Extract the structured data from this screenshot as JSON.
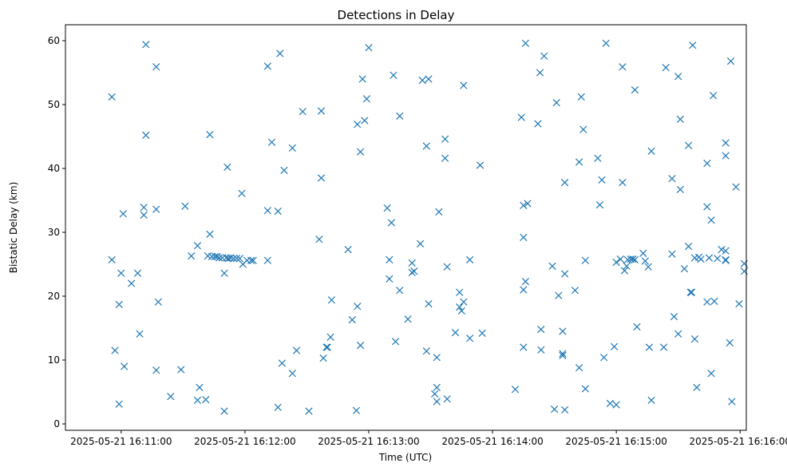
{
  "chart_data": {
    "type": "scatter",
    "title": "Detections in Delay",
    "xlabel": "Time (UTC)",
    "ylabel": "Bistatic Delay (km)",
    "x_unit": "seconds after 2025-05-21 16:11:00",
    "xlim": [
      -27,
      303
    ],
    "ylim": [
      -1,
      62.5
    ],
    "x_ticks": [
      {
        "value": 0,
        "label": "2025-05-21 16:11:00"
      },
      {
        "value": 60,
        "label": "2025-05-21 16:12:00"
      },
      {
        "value": 120,
        "label": "2025-05-21 16:13:00"
      },
      {
        "value": 180,
        "label": "2025-05-21 16:14:00"
      },
      {
        "value": 240,
        "label": "2025-05-21 16:15:00"
      },
      {
        "value": 300,
        "label": "2025-05-21 16:16:00"
      }
    ],
    "y_ticks": [
      0,
      10,
      20,
      30,
      40,
      50,
      60
    ],
    "marker": "x",
    "color": "#1f77b4",
    "series": [
      {
        "name": "detections",
        "points": [
          [
            -4.5,
            51.2
          ],
          [
            -4.5,
            25.7
          ],
          [
            -3,
            11.5
          ],
          [
            -1,
            3.1
          ],
          [
            -1,
            18.7
          ],
          [
            0,
            23.6
          ],
          [
            1,
            32.9
          ],
          [
            1.5,
            9.0
          ],
          [
            5,
            22.0
          ],
          [
            8,
            23.6
          ],
          [
            9,
            14.1
          ],
          [
            11,
            32.7
          ],
          [
            11,
            33.9
          ],
          [
            12,
            59.4
          ],
          [
            12,
            45.2
          ],
          [
            17,
            55.9
          ],
          [
            17,
            33.6
          ],
          [
            17,
            8.4
          ],
          [
            18,
            19.1
          ],
          [
            24,
            4.3
          ],
          [
            29,
            8.5
          ],
          [
            31,
            34.1
          ],
          [
            34,
            26.3
          ],
          [
            37,
            27.9
          ],
          [
            37,
            3.7
          ],
          [
            38,
            5.7
          ],
          [
            41,
            3.8
          ],
          [
            42,
            26.3
          ],
          [
            43,
            45.3
          ],
          [
            43,
            29.7
          ],
          [
            44,
            26.2
          ],
          [
            45.5,
            26.2
          ],
          [
            46.5,
            26.2
          ],
          [
            47.5,
            26.0
          ],
          [
            49,
            26.0
          ],
          [
            50,
            23.6
          ],
          [
            50,
            2.0
          ],
          [
            51,
            26.0
          ],
          [
            51.5,
            40.2
          ],
          [
            52,
            25.9
          ],
          [
            53,
            26.0
          ],
          [
            54.5,
            25.9
          ],
          [
            56,
            25.9
          ],
          [
            57.5,
            25.9
          ],
          [
            58.5,
            36.1
          ],
          [
            59,
            25.0
          ],
          [
            61,
            25.6
          ],
          [
            63,
            25.6
          ],
          [
            64,
            25.6
          ],
          [
            71,
            25.6
          ],
          [
            71,
            33.4
          ],
          [
            71,
            56.0
          ],
          [
            73,
            44.1
          ],
          [
            76,
            33.3
          ],
          [
            76,
            2.6
          ],
          [
            77,
            58.0
          ],
          [
            78,
            9.5
          ],
          [
            79,
            39.7
          ],
          [
            83,
            43.2
          ],
          [
            83,
            7.9
          ],
          [
            85,
            11.5
          ],
          [
            88,
            48.9
          ],
          [
            91,
            2.0
          ],
          [
            96,
            28.9
          ],
          [
            97,
            49.0
          ],
          [
            97,
            38.5
          ],
          [
            98,
            10.3
          ],
          [
            99.5,
            12.0
          ],
          [
            100,
            12.0
          ],
          [
            101.5,
            13.6
          ],
          [
            102,
            19.4
          ],
          [
            110,
            27.3
          ],
          [
            112,
            16.3
          ],
          [
            114,
            2.1
          ],
          [
            114.5,
            18.4
          ],
          [
            114.5,
            46.9
          ],
          [
            116,
            12.3
          ],
          [
            116,
            42.6
          ],
          [
            117,
            54.0
          ],
          [
            118,
            47.5
          ],
          [
            119,
            50.9
          ],
          [
            120,
            58.9
          ],
          [
            129,
            33.8
          ],
          [
            130,
            25.7
          ],
          [
            130,
            22.7
          ],
          [
            131,
            31.5
          ],
          [
            132,
            54.6
          ],
          [
            133,
            12.9
          ],
          [
            135,
            48.2
          ],
          [
            135,
            20.9
          ],
          [
            139,
            16.4
          ],
          [
            141,
            25.2
          ],
          [
            141,
            23.7
          ],
          [
            142,
            23.9
          ],
          [
            145,
            28.2
          ],
          [
            146,
            53.8
          ],
          [
            148,
            43.5
          ],
          [
            148,
            11.4
          ],
          [
            149,
            54.0
          ],
          [
            149,
            18.8
          ],
          [
            152,
            4.7
          ],
          [
            153,
            3.5
          ],
          [
            153,
            5.7
          ],
          [
            153,
            10.4
          ],
          [
            154,
            33.2
          ],
          [
            157,
            44.6
          ],
          [
            157,
            41.6
          ],
          [
            158,
            24.6
          ],
          [
            158,
            3.9
          ],
          [
            162,
            14.3
          ],
          [
            164,
            20.6
          ],
          [
            164,
            18.3
          ],
          [
            165,
            17.7
          ],
          [
            166,
            53.0
          ],
          [
            166,
            19.1
          ],
          [
            169,
            25.7
          ],
          [
            169,
            13.4
          ],
          [
            174,
            40.5
          ],
          [
            175,
            14.2
          ],
          [
            191,
            5.4
          ],
          [
            194,
            48.0
          ],
          [
            195,
            34.2
          ],
          [
            195,
            29.2
          ],
          [
            195,
            21.0
          ],
          [
            195,
            12.0
          ],
          [
            196,
            22.3
          ],
          [
            196,
            59.6
          ],
          [
            197,
            34.5
          ],
          [
            202,
            47.0
          ],
          [
            203,
            55.0
          ],
          [
            203.5,
            14.8
          ],
          [
            203.5,
            11.6
          ],
          [
            205,
            57.6
          ],
          [
            209,
            24.7
          ],
          [
            210,
            2.3
          ],
          [
            211,
            50.3
          ],
          [
            212,
            20.1
          ],
          [
            214,
            14.5
          ],
          [
            214,
            11.0
          ],
          [
            214,
            10.7
          ],
          [
            215,
            23.5
          ],
          [
            215,
            2.2
          ],
          [
            215,
            37.8
          ],
          [
            220,
            20.9
          ],
          [
            222,
            41.0
          ],
          [
            222,
            8.8
          ],
          [
            223,
            51.2
          ],
          [
            224,
            46.1
          ],
          [
            225,
            25.6
          ],
          [
            225,
            5.5
          ],
          [
            231,
            41.6
          ],
          [
            232,
            34.3
          ],
          [
            233,
            38.2
          ],
          [
            234,
            10.4
          ],
          [
            235,
            59.6
          ],
          [
            237,
            3.2
          ],
          [
            239,
            12.1
          ],
          [
            240,
            25.3
          ],
          [
            240,
            3.0
          ],
          [
            242,
            25.8
          ],
          [
            243,
            55.9
          ],
          [
            243,
            37.8
          ],
          [
            244,
            24.0
          ],
          [
            245,
            24.7
          ],
          [
            245.5,
            25.7
          ],
          [
            247,
            25.8
          ],
          [
            248,
            25.8
          ],
          [
            249,
            52.3
          ],
          [
            249,
            25.7
          ],
          [
            250,
            15.2
          ],
          [
            253,
            26.7
          ],
          [
            254,
            25.5
          ],
          [
            255.5,
            24.6
          ],
          [
            256,
            12.0
          ],
          [
            257,
            3.7
          ],
          [
            257,
            42.7
          ],
          [
            263,
            12.0
          ],
          [
            264,
            55.8
          ],
          [
            267,
            38.4
          ],
          [
            267,
            26.6
          ],
          [
            268,
            16.8
          ],
          [
            270,
            54.4
          ],
          [
            270,
            14.1
          ],
          [
            271,
            47.7
          ],
          [
            271,
            36.7
          ],
          [
            273,
            24.3
          ],
          [
            275,
            43.6
          ],
          [
            275,
            27.8
          ],
          [
            276,
            20.6
          ],
          [
            276.5,
            20.6
          ],
          [
            277,
            59.3
          ],
          [
            278,
            26.0
          ],
          [
            278,
            13.3
          ],
          [
            279,
            5.7
          ],
          [
            280,
            26.1
          ],
          [
            281,
            25.8
          ],
          [
            284,
            19.1
          ],
          [
            284,
            40.8
          ],
          [
            284,
            34.0
          ],
          [
            285,
            26.0
          ],
          [
            286,
            31.9
          ],
          [
            286,
            7.9
          ],
          [
            287,
            51.4
          ],
          [
            287.5,
            19.2
          ],
          [
            289,
            25.9
          ],
          [
            291,
            27.3
          ],
          [
            293,
            25.7
          ],
          [
            293,
            25.6
          ],
          [
            293,
            27.1
          ],
          [
            293,
            42.0
          ],
          [
            293,
            44.0
          ],
          [
            295,
            12.7
          ],
          [
            295.5,
            56.8
          ],
          [
            296,
            3.5
          ],
          [
            298,
            37.1
          ],
          [
            299.5,
            18.8
          ],
          [
            302,
            25.1
          ],
          [
            302,
            23.9
          ]
        ]
      }
    ]
  }
}
